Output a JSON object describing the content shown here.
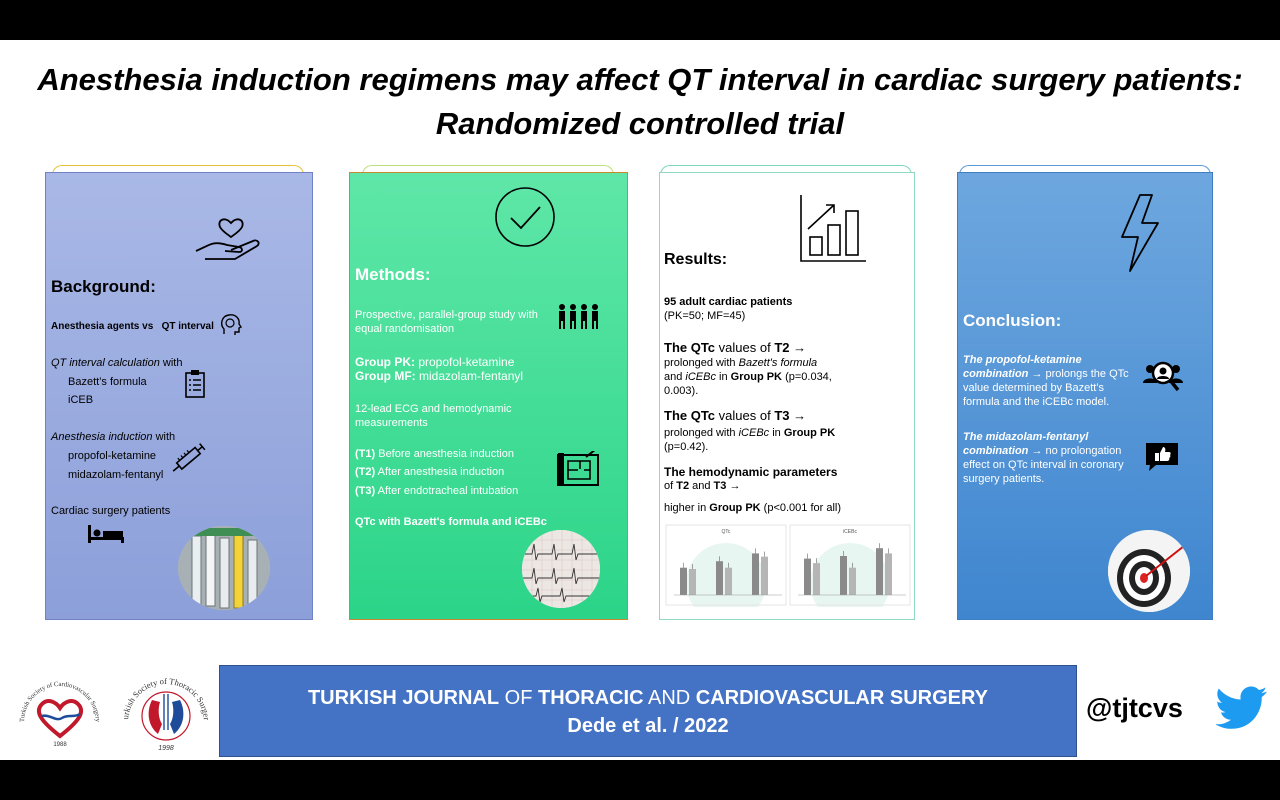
{
  "title": {
    "line1": "Anesthesia induction regimens may affect QT interval in cardiac surgery patients:",
    "line2": "Randomized controlled trial"
  },
  "background": {
    "heading": "Background",
    "agents_label": "Anesthesia agents vs",
    "qt_label": "QT interval",
    "calc_label": "QT interval calculation",
    "calc_with": " with",
    "calc_items": [
      "Bazett’s formula",
      "iCEB"
    ],
    "induction_label": "Anesthesia induction",
    "induction_with": " with",
    "induction_items": [
      "propofol-ketamine",
      "midazolam-fentanyl"
    ],
    "patients": "Cardiac surgery patients"
  },
  "methods": {
    "heading": "Methods",
    "design": "Prospective, parallel-group study with equal randomisation",
    "group_pk_label": "Group PK:",
    "group_pk": " propofol-ketamine",
    "group_mf_label": "Group MF:",
    "group_mf": "  midazolam-fentanyl",
    "measures": "12-lead ECG and hemodynamic measurements",
    "timepoints": [
      {
        "code": "(T1)",
        "text": " Before anesthesia induction"
      },
      {
        "code": "(T2)",
        "text": " After anesthesia induction"
      },
      {
        "code": "(T3)",
        "text": " After endotracheal intubation"
      }
    ],
    "qtc": "QTc with Bazett's formula and iCEBc"
  },
  "results": {
    "heading": "Results",
    "patients_bold": "95 adult cardiac patients",
    "patients_split": "(PK=50; MF=45)",
    "t2_head_a": "The QTc",
    "t2_head_b": " values of ",
    "t2_head_c": "T2 →",
    "t2_line1": "prolonged with ",
    "t2_line1_i": "Bazett's formula",
    "t2_line2_a": "and ",
    "t2_line2_i": "iCEBc",
    "t2_line2_b": " in ",
    "t2_line2_bold": "Group PK",
    "t2_line2_c": " (p=0.034, 0.003).",
    "t3_head_a": "The QTc",
    "t3_head_b": " values of ",
    "t3_head_c": "T3 →",
    "t3_line1": "prolonged with ",
    "t3_line1_i": "iCEBc",
    "t3_line1_b": " in ",
    "t3_line1_bold": "Group PK",
    "t3_line2": "(p=0.42).",
    "hemo_head": "The hemodynamic parameters",
    "hemo_line_a": "of ",
    "hemo_line_b": "T2",
    "hemo_line_c": " and ",
    "hemo_line_d": "T3 →",
    "hemo_line2_a": "higher in ",
    "hemo_line2_b": "Group PK",
    "hemo_line2_c": "  (p<0.001 for all)",
    "chart1_title": "QTc",
    "chart2_title": "iCEBc"
  },
  "conclusion": {
    "heading": "Conclusion",
    "pk_italic": "The propofol-ketamine combination",
    "pk_text": " → prolongs the QTc value determined by Bazett’s formula and the iCEBc model.",
    "mf_italic": "The midazolam-fentanyl combination",
    "mf_text": " →  no prolongation effect on QTc interval in coronary surgery patients."
  },
  "footer": {
    "journal_a": "TURKISH JOURNAL",
    "journal_b": " OF ",
    "journal_c": "THORACIC",
    "journal_d": " AND ",
    "journal_e": "CARDIOVASCULAR SURGERY",
    "citation": "Dede et al. / 2022",
    "handle": "@tjtcvs",
    "logo1_text": "Turkish Society of Cardiovascular Surgery",
    "logo1_year": "1988",
    "logo2_text": "Turkish Society of Thoracic Surgery",
    "logo2_year": "1998"
  },
  "colors": {
    "background_panel": "#98a9e0",
    "methods_panel": "#3ddc95",
    "results_panel": "#ffffff",
    "conclusion_panel": "#5696d7",
    "footer_box": "#4472c4",
    "twitter": "#1d9bf0"
  },
  "chart_data": [
    {
      "type": "bar",
      "title": "QTc",
      "categories": [
        "",
        "",
        ""
      ],
      "series": [
        {
          "values": [
            4.2,
            5.2,
            6.4
          ]
        },
        {
          "values": [
            4.0,
            4.2,
            5.9
          ]
        }
      ],
      "ylim": [
        0,
        8
      ]
    },
    {
      "type": "bar",
      "title": "iCEBc",
      "categories": [
        "",
        "",
        ""
      ],
      "series": [
        {
          "values": [
            5.6,
            6.0,
            7.2
          ]
        },
        {
          "values": [
            4.9,
            4.2,
            6.4
          ]
        }
      ],
      "ylim": [
        0,
        8
      ]
    }
  ]
}
